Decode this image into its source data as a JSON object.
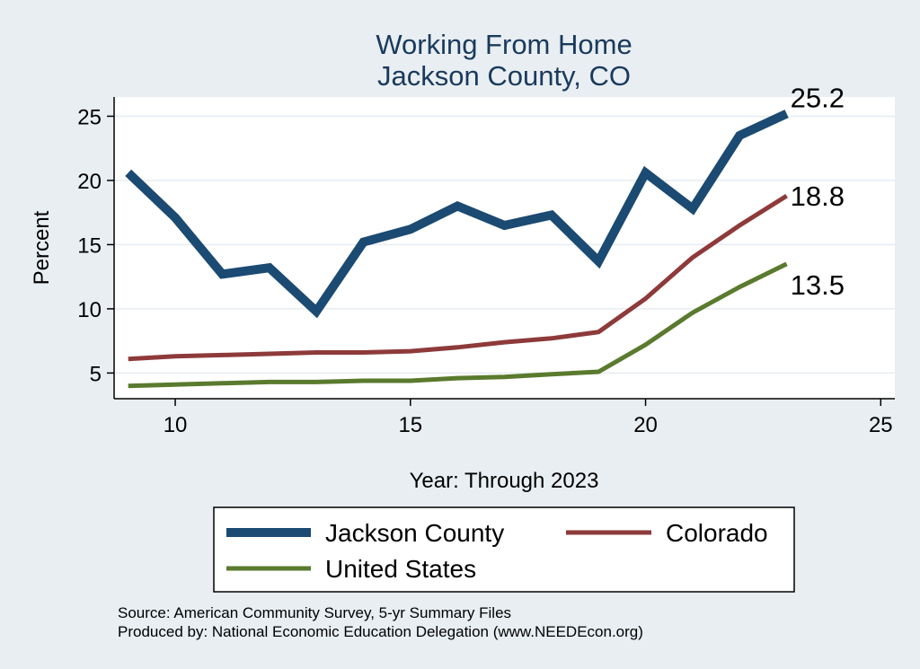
{
  "chart_data": {
    "type": "line",
    "title": "Working From Home",
    "subtitle": "Jackson County, CO",
    "xlabel": "Year: Through 2023",
    "ylabel": "Percent",
    "xlim": [
      8.7,
      25.3
    ],
    "ylim": [
      3.0,
      26.5
    ],
    "x_ticks": [
      10,
      15,
      20,
      25
    ],
    "y_ticks": [
      5,
      10,
      15,
      20,
      25
    ],
    "grid": true,
    "legend_position": "bottom",
    "x": [
      9,
      10,
      11,
      12,
      13,
      14,
      15,
      16,
      17,
      18,
      19,
      20,
      21,
      22,
      23
    ],
    "series": [
      {
        "name": "Jackson County",
        "color": "#1b4a72",
        "values": [
          20.6,
          17.1,
          12.7,
          13.2,
          9.8,
          15.2,
          16.2,
          18.0,
          16.5,
          17.3,
          13.7,
          20.6,
          17.8,
          23.5,
          25.2
        ],
        "end_label": "25.2"
      },
      {
        "name": "Colorado",
        "color": "#8e3a3a",
        "values": [
          6.1,
          6.3,
          6.4,
          6.5,
          6.6,
          6.6,
          6.7,
          7.0,
          7.4,
          7.7,
          8.2,
          10.8,
          14.0,
          16.5,
          18.8
        ],
        "end_label": "18.8"
      },
      {
        "name": "United States",
        "color": "#5a7a2e",
        "values": [
          4.0,
          4.1,
          4.2,
          4.3,
          4.3,
          4.4,
          4.4,
          4.6,
          4.7,
          4.9,
          5.1,
          7.2,
          9.7,
          11.7,
          13.5
        ],
        "end_label": "13.5"
      }
    ]
  },
  "source_note": "Source: American Community Survey, 5-yr Summary Files",
  "producer_note": "Produced by: National Economic Education Delegation (www.NEEDEcon.org)"
}
